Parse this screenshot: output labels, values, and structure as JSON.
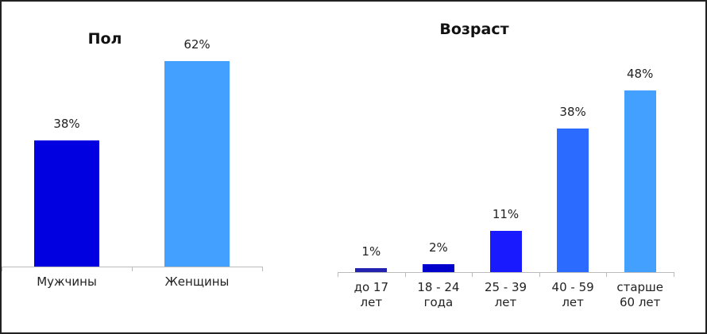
{
  "chart_data": [
    {
      "type": "bar",
      "title": "Пол",
      "categories": [
        "Мужчины",
        "Женщины"
      ],
      "values": [
        38,
        62
      ],
      "value_labels": [
        "38%",
        "62%"
      ],
      "colors": [
        "#0000e0",
        "#44a0ff"
      ]
    },
    {
      "type": "bar",
      "title": "Возраст",
      "categories": [
        "до 17 лет",
        "18 - 24 года",
        "25 - 39 лет",
        "40 - 59 лет",
        "старше 60 лет"
      ],
      "values": [
        1,
        2,
        11,
        38,
        48
      ],
      "value_labels": [
        "1%",
        "2%",
        "11%",
        "38%",
        "48%"
      ],
      "colors": [
        "#2323b0",
        "#0000cc",
        "#1a1aff",
        "#2b6bff",
        "#44a0ff"
      ]
    }
  ]
}
